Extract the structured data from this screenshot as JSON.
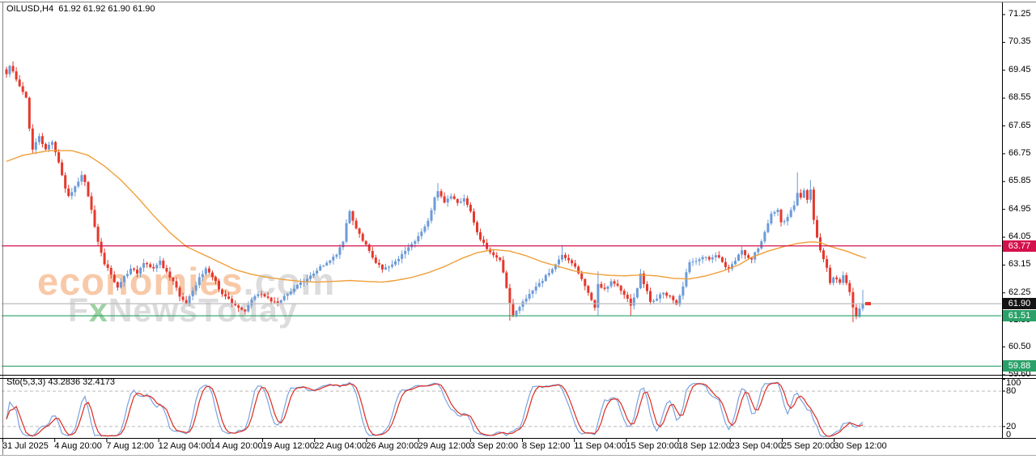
{
  "header": {
    "symbol": "OILUSD,H4",
    "quotes": "61.92 61.92 61.90 61.90"
  },
  "watermark": {
    "brand": "economies",
    "suffix": ".com",
    "line2_f": "F",
    "line2_x": "x",
    "line2_rest": "NewsToday"
  },
  "indicator_label": "Sto(5,3,3) 43.2836 32.4173",
  "price_axis": {
    "ticks": [
      "71.25",
      "70.35",
      "69.45",
      "68.55",
      "67.65",
      "66.75",
      "65.85",
      "64.95",
      "64.05",
      "63.15",
      "62.25",
      "61.35",
      "60.50",
      "59.60"
    ],
    "tick_values": [
      71.25,
      70.35,
      69.45,
      68.55,
      67.65,
      66.75,
      65.85,
      64.95,
      64.05,
      63.15,
      62.25,
      61.35,
      60.5,
      59.6
    ],
    "badges": [
      {
        "value": "63.77",
        "price": 63.77,
        "style": "red"
      },
      {
        "value": "61.90",
        "price": 61.9,
        "style": "black"
      },
      {
        "value": "61.51",
        "price": 61.51,
        "style": "green"
      },
      {
        "value": "59.88",
        "price": 59.88,
        "style": "green"
      }
    ]
  },
  "sub_axis": {
    "ticks": [
      "100",
      "80",
      "20",
      "0"
    ],
    "tick_values": [
      100,
      80,
      20,
      0
    ]
  },
  "time_axis": {
    "labels": [
      "31 Jul 2025",
      "4 Aug 20:00",
      "7 Aug 12:00",
      "12 Aug 04:00",
      "14 Aug 20:00",
      "19 Aug 12:00",
      "22 Aug 04:00",
      "26 Aug 20:00",
      "29 Aug 12:00",
      "3 Sep 20:00",
      "8 Sep 12:00",
      "11 Sep 04:00",
      "15 Sep 20:00",
      "18 Sep 12:00",
      "23 Sep 04:00",
      "25 Sep 20:00",
      "30 Sep 12:00"
    ]
  },
  "colors": {
    "candle_up": "#6c9bd8",
    "candle_down": "#e5382c",
    "ma": "#ef9f39",
    "hline_red": "#d4114b",
    "price_line": "#bcbcbc",
    "hline_green": "#2aa168",
    "stoch_k": "#7aa3de",
    "stoch_d": "#dd2a20",
    "stoch_level": "#bbbbbb",
    "border": "#000000"
  },
  "chart_data": {
    "type": "candlestick+stochastic",
    "symbol": "OILUSD",
    "timeframe": "H4",
    "last_price": 61.9,
    "ohlc_header": {
      "open": "61.92",
      "high": "61.92",
      "low": "61.90",
      "close": "61.90"
    },
    "ylim": [
      59.6,
      71.25
    ],
    "sub_ylim": [
      0,
      100
    ],
    "sub_levels": [
      80,
      20
    ],
    "hlines": [
      {
        "price": 63.77,
        "color_key": "hline_red"
      },
      {
        "price": 61.9,
        "color_key": "price_line"
      },
      {
        "price": 61.51,
        "color_key": "hline_green"
      },
      {
        "price": 59.88,
        "color_key": "hline_green"
      }
    ],
    "candle_count": 263,
    "price_path": [
      [
        0,
        69.3
      ],
      [
        1,
        69.6
      ],
      [
        3,
        69.15
      ],
      [
        5,
        68.75
      ],
      [
        6,
        68.55
      ],
      [
        7,
        67.6
      ],
      [
        8,
        66.85
      ],
      [
        10,
        67.35
      ],
      [
        12,
        66.85
      ],
      [
        14,
        67.15
      ],
      [
        16,
        66.5
      ],
      [
        18,
        65.65
      ],
      [
        19,
        65.35
      ],
      [
        21,
        65.7
      ],
      [
        23,
        66.05
      ],
      [
        24,
        65.85
      ],
      [
        26,
        64.9
      ],
      [
        28,
        63.9
      ],
      [
        30,
        63.2
      ],
      [
        32,
        62.85
      ],
      [
        34,
        62.4
      ],
      [
        36,
        62.75
      ],
      [
        38,
        63.05
      ],
      [
        40,
        62.9
      ],
      [
        42,
        63.2
      ],
      [
        45,
        63.0
      ],
      [
        47,
        63.25
      ],
      [
        49,
        62.9
      ],
      [
        51,
        62.6
      ],
      [
        53,
        62.15
      ],
      [
        55,
        61.95
      ],
      [
        57,
        62.3
      ],
      [
        59,
        62.75
      ],
      [
        61,
        63.05
      ],
      [
        63,
        62.8
      ],
      [
        65,
        62.4
      ],
      [
        67,
        62.1
      ],
      [
        69,
        61.95
      ],
      [
        71,
        61.8
      ],
      [
        73,
        61.65
      ],
      [
        75,
        62.0
      ],
      [
        77,
        62.25
      ],
      [
        79,
        62.1
      ],
      [
        81,
        62.0
      ],
      [
        83,
        61.9
      ],
      [
        85,
        62.15
      ],
      [
        87,
        62.3
      ],
      [
        89,
        62.5
      ],
      [
        91,
        62.65
      ],
      [
        93,
        62.8
      ],
      [
        95,
        63.0
      ],
      [
        97,
        63.15
      ],
      [
        99,
        63.3
      ],
      [
        101,
        63.5
      ],
      [
        103,
        63.9
      ],
      [
        104,
        64.5
      ],
      [
        105,
        64.85
      ],
      [
        107,
        64.3
      ],
      [
        109,
        63.95
      ],
      [
        111,
        63.6
      ],
      [
        113,
        63.25
      ],
      [
        115,
        63.0
      ],
      [
        117,
        63.1
      ],
      [
        119,
        63.25
      ],
      [
        121,
        63.5
      ],
      [
        123,
        63.7
      ],
      [
        125,
        63.9
      ],
      [
        127,
        64.2
      ],
      [
        129,
        64.6
      ],
      [
        131,
        65.3
      ],
      [
        132,
        65.55
      ],
      [
        134,
        65.2
      ],
      [
        136,
        65.35
      ],
      [
        138,
        65.15
      ],
      [
        140,
        65.3
      ],
      [
        142,
        64.9
      ],
      [
        143,
        64.5
      ],
      [
        145,
        64.0
      ],
      [
        147,
        63.7
      ],
      [
        149,
        63.5
      ],
      [
        151,
        63.3
      ],
      [
        152,
        62.9
      ],
      [
        153,
        62.4
      ],
      [
        154,
        61.9
      ],
      [
        155,
        61.55
      ],
      [
        157,
        61.8
      ],
      [
        159,
        62.1
      ],
      [
        161,
        62.35
      ],
      [
        163,
        62.55
      ],
      [
        165,
        62.8
      ],
      [
        167,
        63.0
      ],
      [
        169,
        63.3
      ],
      [
        170,
        63.45
      ],
      [
        172,
        63.3
      ],
      [
        174,
        63.1
      ],
      [
        176,
        62.7
      ],
      [
        178,
        62.25
      ],
      [
        180,
        61.75
      ],
      [
        181,
        62.5
      ],
      [
        183,
        62.4
      ],
      [
        185,
        62.6
      ],
      [
        187,
        62.45
      ],
      [
        189,
        62.2
      ],
      [
        191,
        61.85
      ],
      [
        193,
        62.4
      ],
      [
        194,
        62.85
      ],
      [
        196,
        62.3
      ],
      [
        197,
        61.95
      ],
      [
        199,
        62.1
      ],
      [
        201,
        62.25
      ],
      [
        203,
        62.1
      ],
      [
        205,
        61.85
      ],
      [
        207,
        62.5
      ],
      [
        209,
        63.25
      ],
      [
        211,
        63.3
      ],
      [
        213,
        63.45
      ],
      [
        215,
        63.35
      ],
      [
        217,
        63.5
      ],
      [
        219,
        63.25
      ],
      [
        221,
        63.0
      ],
      [
        223,
        63.3
      ],
      [
        225,
        63.6
      ],
      [
        227,
        63.4
      ],
      [
        228,
        63.35
      ],
      [
        230,
        63.7
      ],
      [
        232,
        64.2
      ],
      [
        234,
        64.85
      ],
      [
        236,
        64.95
      ],
      [
        237,
        64.5
      ],
      [
        239,
        64.7
      ],
      [
        241,
        65.1
      ],
      [
        242,
        65.5
      ],
      [
        243,
        65.35
      ],
      [
        244,
        65.6
      ],
      [
        245,
        65.3
      ],
      [
        246,
        65.55
      ],
      [
        247,
        64.6
      ],
      [
        248,
        64.0
      ],
      [
        249,
        63.6
      ],
      [
        250,
        63.3
      ],
      [
        251,
        63.05
      ],
      [
        252,
        62.6
      ],
      [
        253,
        62.75
      ],
      [
        255,
        62.6
      ],
      [
        256,
        62.8
      ],
      [
        257,
        62.55
      ],
      [
        258,
        62.3
      ],
      [
        259,
        61.75
      ],
      [
        260,
        61.5
      ],
      [
        261,
        61.7
      ],
      [
        262,
        61.9
      ]
    ],
    "wick_events": {
      "105": {
        "h": 64.95
      },
      "132": {
        "h": 65.8
      },
      "154": {
        "l": 61.35
      },
      "170": {
        "h": 63.8
      },
      "181": {
        "l": 61.5,
        "h": 62.95
      },
      "191": {
        "l": 61.5
      },
      "242": {
        "h": 66.15
      },
      "246": {
        "h": 65.9
      },
      "259": {
        "l": 61.3
      },
      "262": {
        "h": 62.35
      }
    },
    "ma_path": [
      [
        0,
        66.5
      ],
      [
        5,
        66.7
      ],
      [
        13,
        66.85
      ],
      [
        20,
        66.85
      ],
      [
        25,
        66.7
      ],
      [
        30,
        66.35
      ],
      [
        35,
        65.9
      ],
      [
        40,
        65.35
      ],
      [
        45,
        64.75
      ],
      [
        50,
        64.2
      ],
      [
        55,
        63.75
      ],
      [
        60,
        63.5
      ],
      [
        65,
        63.25
      ],
      [
        70,
        63.0
      ],
      [
        75,
        62.85
      ],
      [
        80,
        62.75
      ],
      [
        85,
        62.68
      ],
      [
        90,
        62.62
      ],
      [
        95,
        62.6
      ],
      [
        100,
        62.62
      ],
      [
        105,
        62.65
      ],
      [
        110,
        62.62
      ],
      [
        115,
        62.6
      ],
      [
        119,
        62.65
      ],
      [
        124,
        62.75
      ],
      [
        129,
        62.9
      ],
      [
        134,
        63.1
      ],
      [
        139,
        63.35
      ],
      [
        144,
        63.55
      ],
      [
        149,
        63.65
      ],
      [
        154,
        63.6
      ],
      [
        159,
        63.45
      ],
      [
        164,
        63.25
      ],
      [
        169,
        63.1
      ],
      [
        174,
        62.95
      ],
      [
        179,
        62.87
      ],
      [
        184,
        62.82
      ],
      [
        189,
        62.8
      ],
      [
        194,
        62.83
      ],
      [
        199,
        62.8
      ],
      [
        204,
        62.72
      ],
      [
        209,
        62.7
      ],
      [
        214,
        62.8
      ],
      [
        219,
        62.95
      ],
      [
        224,
        63.15
      ],
      [
        228,
        63.4
      ],
      [
        233,
        63.6
      ],
      [
        238,
        63.75
      ],
      [
        242,
        63.85
      ],
      [
        246,
        63.9
      ],
      [
        249,
        63.88
      ],
      [
        252,
        63.75
      ],
      [
        257,
        63.6
      ],
      [
        260,
        63.48
      ],
      [
        263,
        63.37
      ]
    ],
    "stochastic": {
      "name": "Sto",
      "params": [
        5,
        3,
        3
      ],
      "current_k": 43.2836,
      "current_d": 32.4173
    }
  }
}
